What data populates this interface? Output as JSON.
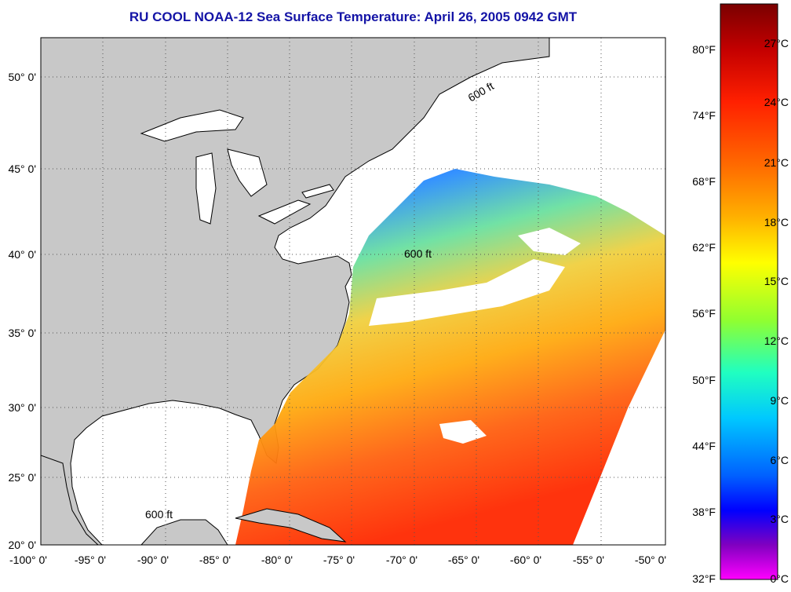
{
  "title": "RU COOL  NOAA-12  Sea Surface Temperature:  April 26, 2005 0942 GMT",
  "map": {
    "lon_ticks": [
      "-100° 0'",
      "-95° 0'",
      "-90° 0'",
      "-85° 0'",
      "-80° 0'",
      "-75° 0'",
      "-70° 0'",
      "-65° 0'",
      "-60° 0'",
      "-55° 0'",
      "-50° 0'"
    ],
    "lat_ticks": [
      "50° 0'",
      "45° 0'",
      "40° 0'",
      "35° 0'",
      "30° 0'",
      "25° 0'",
      "20° 0'"
    ],
    "contour_label": "600 ft",
    "land_color": "#c8c8c8",
    "cloud_color": "#ffffff"
  },
  "colorbar": {
    "fahrenheit_labels": [
      "80°F",
      "74°F",
      "68°F",
      "62°F",
      "56°F",
      "50°F",
      "44°F",
      "38°F",
      "32°F"
    ],
    "celsius_labels": [
      "27°C",
      "24°C",
      "21°C",
      "18°C",
      "15°C",
      "12°C",
      "9°C",
      "6°C",
      "3°C",
      "0°C"
    ],
    "colors_top_to_bottom": [
      "#7a0000",
      "#c40000",
      "#ff2000",
      "#ff6a00",
      "#ffb000",
      "#ffff00",
      "#90ff30",
      "#20ffc0",
      "#00c8ff",
      "#0060ff",
      "#0000ff",
      "#8000c0",
      "#ff00ff"
    ]
  }
}
